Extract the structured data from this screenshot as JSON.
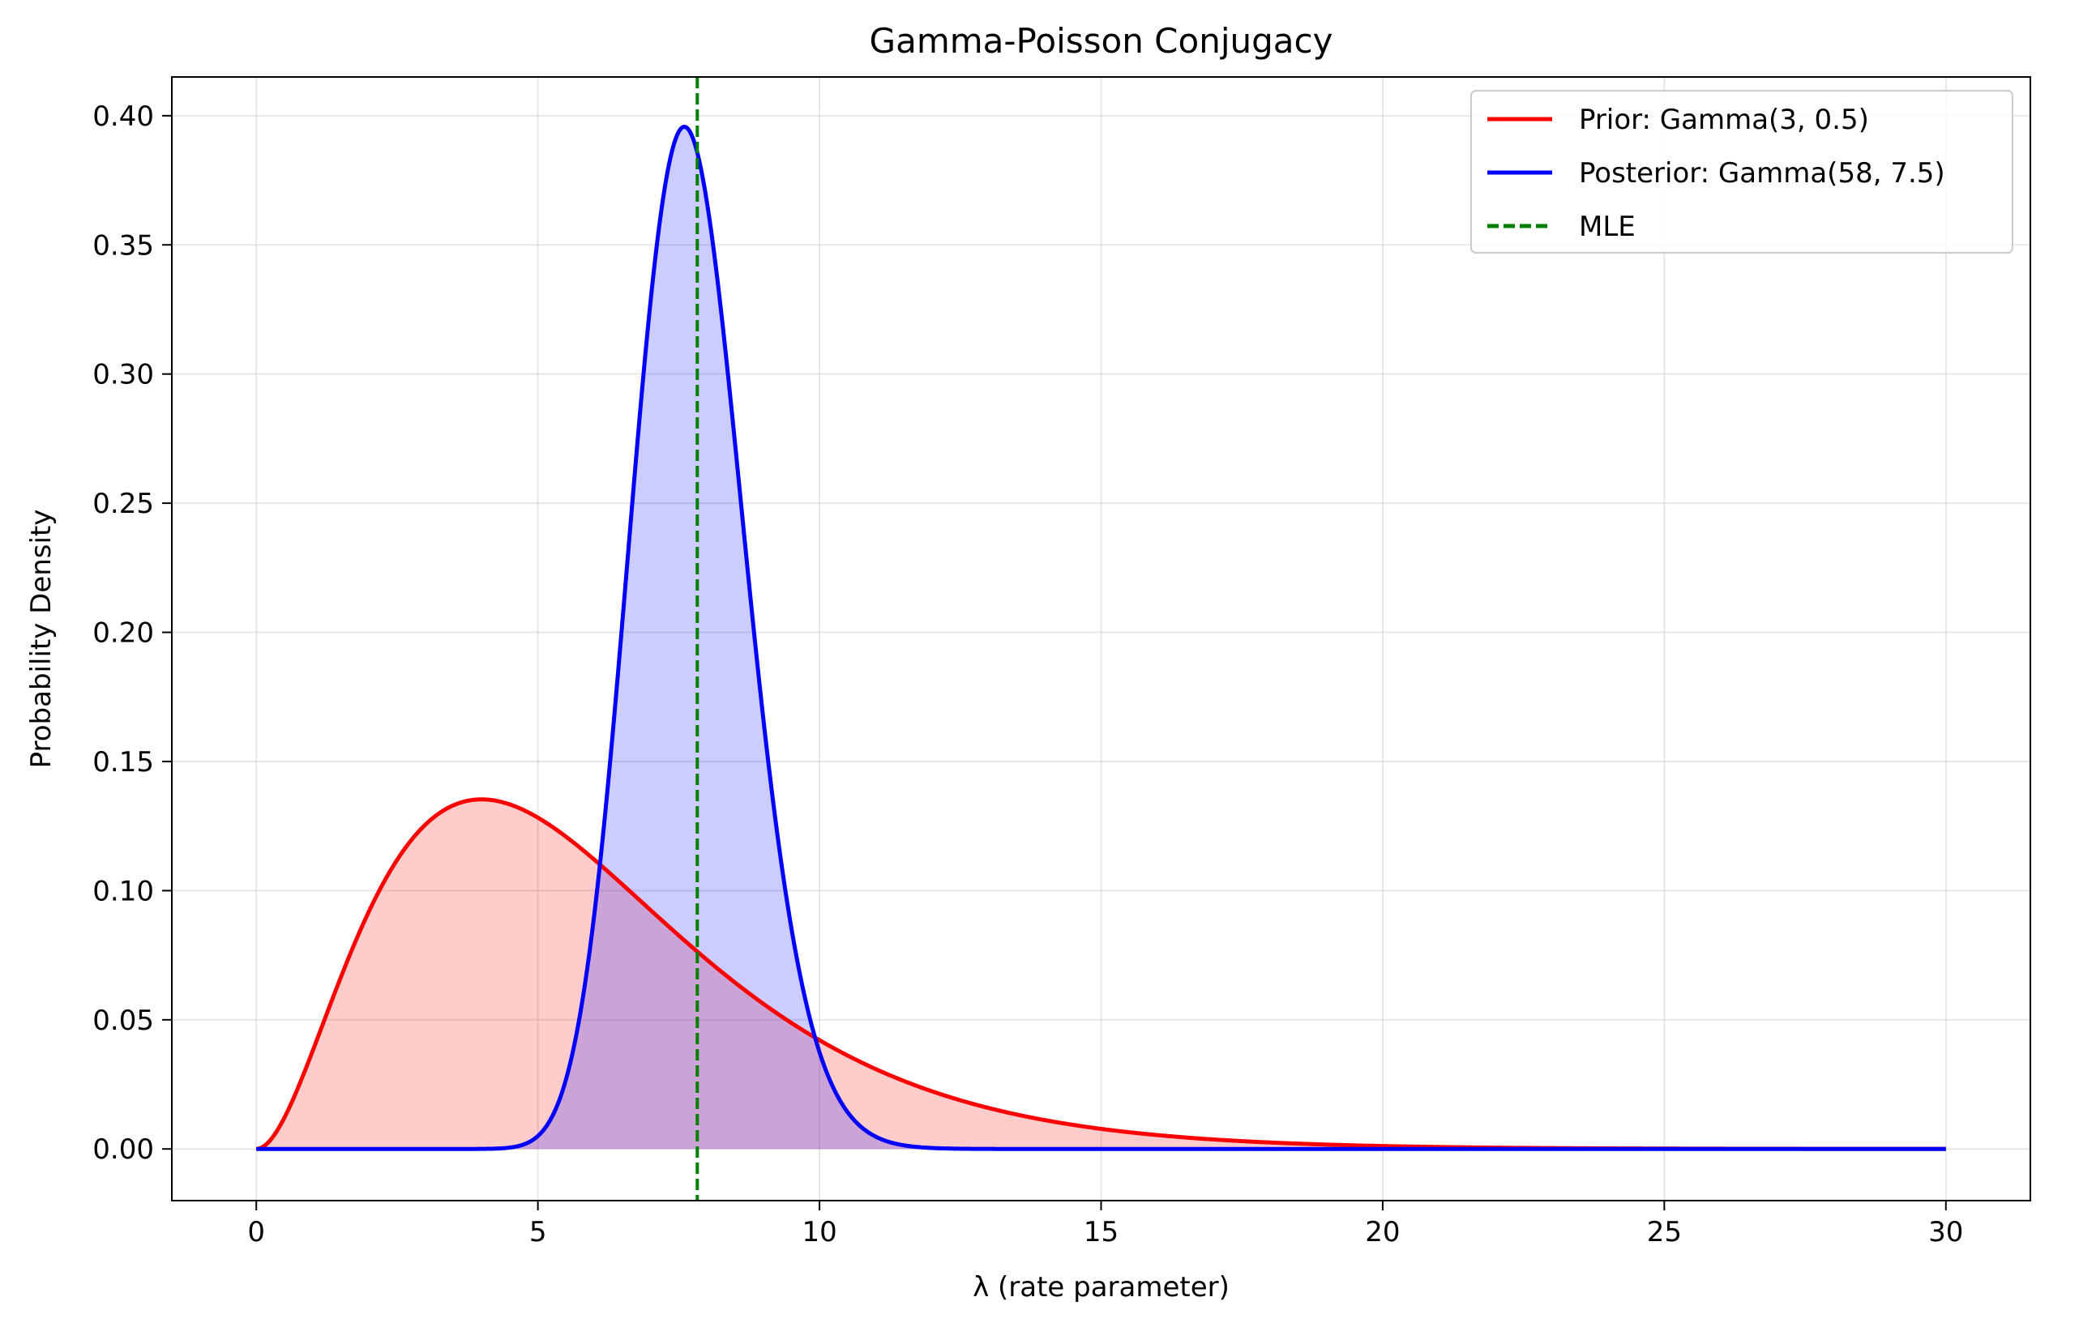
{
  "chart_data": {
    "type": "line",
    "title": "Gamma-Poisson Conjugacy",
    "xlabel": "λ (rate parameter)",
    "ylabel": "Probability Density",
    "xlim": [
      -1.5,
      31.5
    ],
    "ylim": [
      -0.02,
      0.415
    ],
    "xticks": [
      0,
      5,
      10,
      15,
      20,
      25,
      30
    ],
    "xtick_labels": [
      "0",
      "5",
      "10",
      "15",
      "20",
      "25",
      "30"
    ],
    "yticks": [
      0.0,
      0.05,
      0.1,
      0.15,
      0.2,
      0.25,
      0.3,
      0.35,
      0.4
    ],
    "ytick_labels": [
      "0.00",
      "0.05",
      "0.10",
      "0.15",
      "0.20",
      "0.25",
      "0.30",
      "0.35",
      "0.40"
    ],
    "grid": true,
    "legend_position": "top-right",
    "series": [
      {
        "name": "Prior: Gamma(3, 0.5)",
        "distribution": "gamma",
        "shape": 3,
        "rate": 0.5,
        "x_range": [
          0,
          30
        ],
        "color": "#ff0000",
        "fill": "rgba(255,0,0,0.2)",
        "style": "solid"
      },
      {
        "name": "Posterior: Gamma(58, 7.5)",
        "distribution": "gamma",
        "shape": 58,
        "rate": 7.5,
        "x_range": [
          0,
          30
        ],
        "color": "#0000ff",
        "fill": "rgba(0,0,255,0.2)",
        "style": "solid"
      },
      {
        "name": "MLE",
        "type": "vline",
        "x": 7.83,
        "color": "#007f00",
        "style": "dashed"
      }
    ]
  }
}
